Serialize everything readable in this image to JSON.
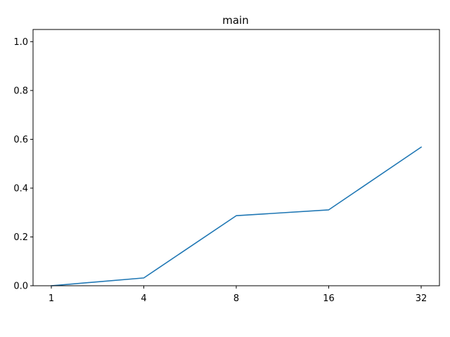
{
  "chart_data": {
    "type": "line",
    "title": "main",
    "xlabel": "",
    "ylabel": "",
    "x_scale": "categorical",
    "categories": [
      "1",
      "4",
      "8",
      "16",
      "32"
    ],
    "series": [
      {
        "name": "main",
        "color": "#1f77b4",
        "values": [
          0.0,
          0.032,
          0.287,
          0.311,
          0.568
        ]
      }
    ],
    "ylim": [
      0.0,
      1.05
    ],
    "yticks": [
      0.0,
      0.2,
      0.4,
      0.6,
      0.8,
      1.0
    ],
    "ytick_labels": [
      "0.0",
      "0.2",
      "0.4",
      "0.6",
      "0.8",
      "1.0"
    ],
    "grid": false,
    "legend": "none"
  }
}
